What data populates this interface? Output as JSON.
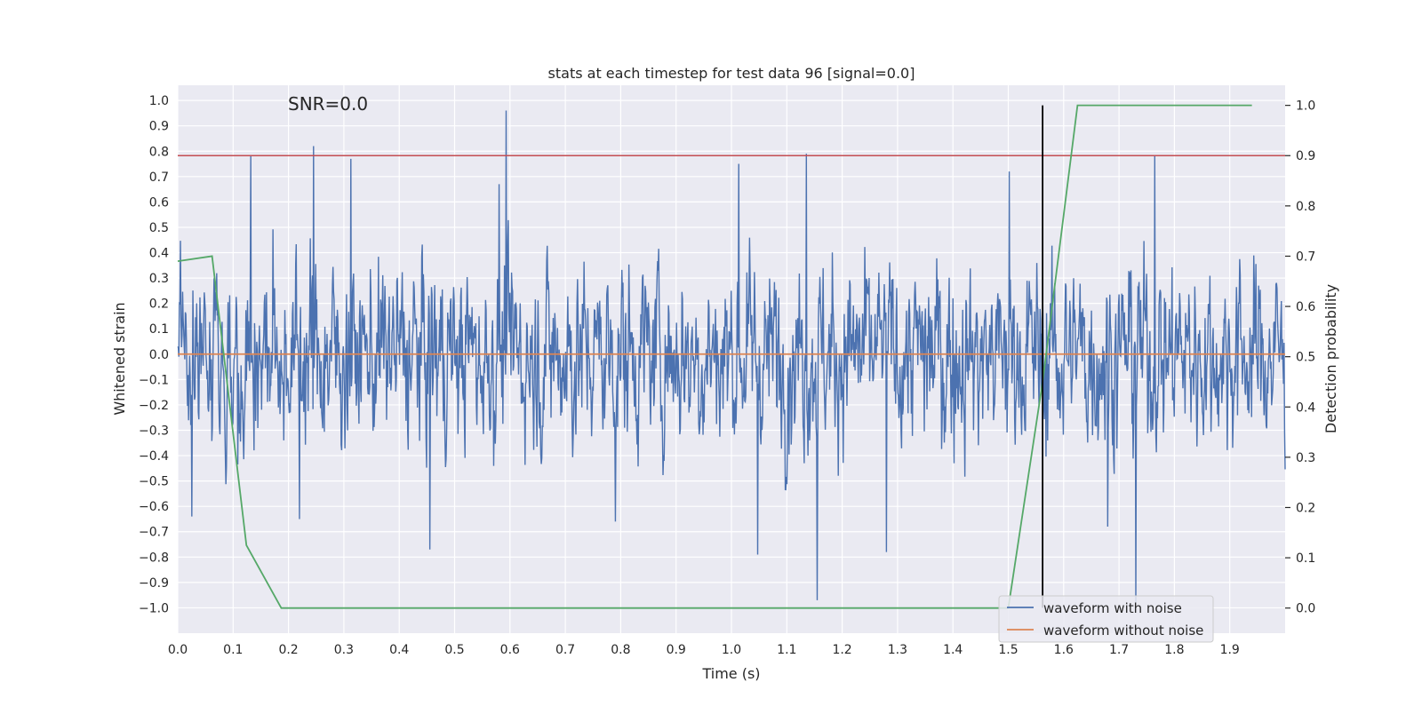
{
  "chart_data": {
    "type": "line",
    "title": "stats at each timestep for test data 96 [signal=0.0]",
    "annotation": "SNR=0.0",
    "xlabel": "Time (s)",
    "ylabel": "Whitened strain",
    "y2label": "Detection probability",
    "xlim": [
      0.0,
      2.0
    ],
    "ylim": [
      -1.1,
      1.06
    ],
    "y2lim": [
      -0.05,
      1.04
    ],
    "grid": true,
    "legend_position": "lower right",
    "xticks": [
      "0.0",
      "0.1",
      "0.2",
      "0.3",
      "0.4",
      "0.5",
      "0.6",
      "0.7",
      "0.8",
      "0.9",
      "1.0",
      "1.1",
      "1.2",
      "1.3",
      "1.4",
      "1.5",
      "1.6",
      "1.7",
      "1.8",
      "1.9"
    ],
    "yticks": [
      "1.0",
      "0.9",
      "0.8",
      "0.7",
      "0.6",
      "0.5",
      "0.4",
      "0.3",
      "0.2",
      "0.1",
      "0.0",
      "−0.1",
      "−0.2",
      "−0.3",
      "−0.4",
      "−0.5",
      "−0.6",
      "−0.7",
      "−0.8",
      "−0.9",
      "−1.0"
    ],
    "y2ticks": [
      "1.0",
      "0.9",
      "0.8",
      "0.7",
      "0.6",
      "0.5",
      "0.4",
      "0.3",
      "0.2",
      "0.1",
      "0.0"
    ],
    "series": [
      {
        "name": "waveform with noise",
        "color": "#4c72b0",
        "axis": "left",
        "kind": "noise",
        "n_samples": 2048,
        "x_range": [
          0.0,
          2.0
        ],
        "approx_std": 0.27,
        "peaks": [
          {
            "x": 0.245,
            "y": 0.82
          },
          {
            "x": 0.132,
            "y": 0.78
          },
          {
            "x": 0.313,
            "y": 0.77
          },
          {
            "x": 0.593,
            "y": 0.96
          },
          {
            "x": 0.58,
            "y": 0.67
          },
          {
            "x": 1.013,
            "y": 0.75
          },
          {
            "x": 1.135,
            "y": 0.79
          },
          {
            "x": 1.502,
            "y": 0.72
          },
          {
            "x": 1.765,
            "y": 0.78
          },
          {
            "x": 1.155,
            "y": -0.97
          },
          {
            "x": 1.73,
            "y": -0.98
          },
          {
            "x": 0.455,
            "y": -0.77
          },
          {
            "x": 1.047,
            "y": -0.79
          },
          {
            "x": 1.28,
            "y": -0.78
          },
          {
            "x": 0.025,
            "y": -0.64
          },
          {
            "x": 0.22,
            "y": -0.65
          },
          {
            "x": 0.79,
            "y": -0.66
          },
          {
            "x": 1.68,
            "y": -0.68
          }
        ]
      },
      {
        "name": "waveform without noise",
        "color": "#dd8452",
        "axis": "left",
        "x": [
          0.0,
          2.0
        ],
        "y": [
          0.0,
          0.0
        ]
      },
      {
        "color": "#55a868",
        "axis": "right",
        "x": [
          0.0,
          0.062,
          0.124,
          0.187,
          0.25,
          0.5,
          1.0,
          1.5,
          1.562,
          1.625,
          1.94
        ],
        "y": [
          0.69,
          0.7,
          0.125,
          0.0,
          0.0,
          0.0,
          0.0,
          0.0,
          0.45,
          1.0,
          1.0
        ]
      }
    ],
    "threshold_line": {
      "axis": "right",
      "y": 0.9,
      "color": "#c44e52"
    },
    "vertical_marker": {
      "x": 1.562,
      "color": "#000000"
    }
  }
}
